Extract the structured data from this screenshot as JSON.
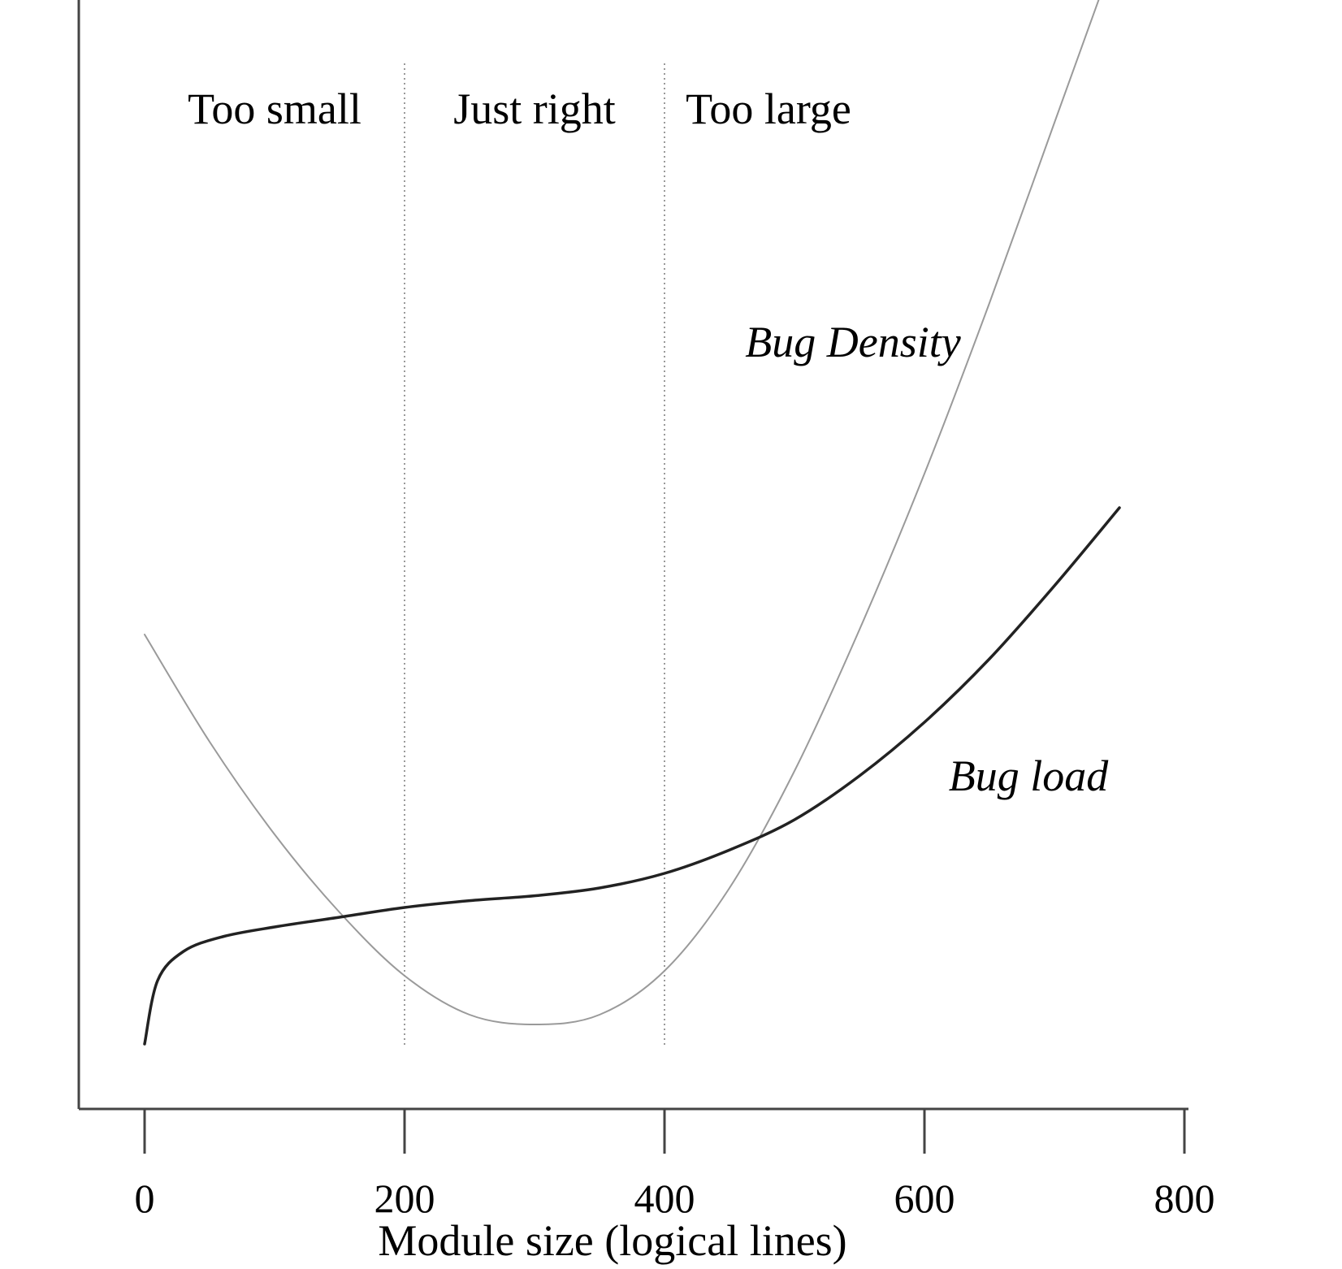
{
  "chart_data": {
    "type": "line",
    "title": "",
    "xlabel": "Module size (logical lines)",
    "ylabel": "",
    "xlim": [
      -52,
      800
    ],
    "ylim": [
      0,
      10
    ],
    "x_ticks": [
      0,
      200,
      400,
      600,
      800
    ],
    "x_tick_labels": [
      "0",
      "200",
      "400",
      "600",
      "800"
    ],
    "y_ticks_shown": false,
    "grid": false,
    "legend": "none (series labelled inline)",
    "regions": [
      {
        "label": "Too small",
        "x_range": [
          0,
          200
        ]
      },
      {
        "label": "Just right",
        "x_range": [
          200,
          400
        ]
      },
      {
        "label": "Too large",
        "x_range": [
          400,
          800
        ]
      }
    ],
    "region_dividers_x": [
      200,
      400
    ],
    "series": [
      {
        "name": "Bug Density",
        "color": "#9a9a9a",
        "x": [
          0,
          50,
          100,
          150,
          200,
          250,
          300,
          350,
          400,
          450,
          500,
          550,
          600,
          650,
          700,
          750
        ],
        "y": [
          4.2,
          3.1,
          2.15,
          1.35,
          0.7,
          0.3,
          0.2,
          0.3,
          0.75,
          1.6,
          2.8,
          4.25,
          5.85,
          7.6,
          9.45,
          11.3
        ]
      },
      {
        "name": "Bug load",
        "color": "#222222",
        "x": [
          0,
          10,
          30,
          60,
          100,
          150,
          200,
          250,
          300,
          350,
          400,
          450,
          500,
          550,
          600,
          650,
          700,
          750
        ],
        "y": [
          0,
          0.65,
          0.95,
          1.1,
          1.2,
          1.3,
          1.4,
          1.47,
          1.52,
          1.6,
          1.75,
          1.99,
          2.3,
          2.75,
          3.3,
          3.95,
          4.7,
          5.5
        ]
      }
    ]
  }
}
